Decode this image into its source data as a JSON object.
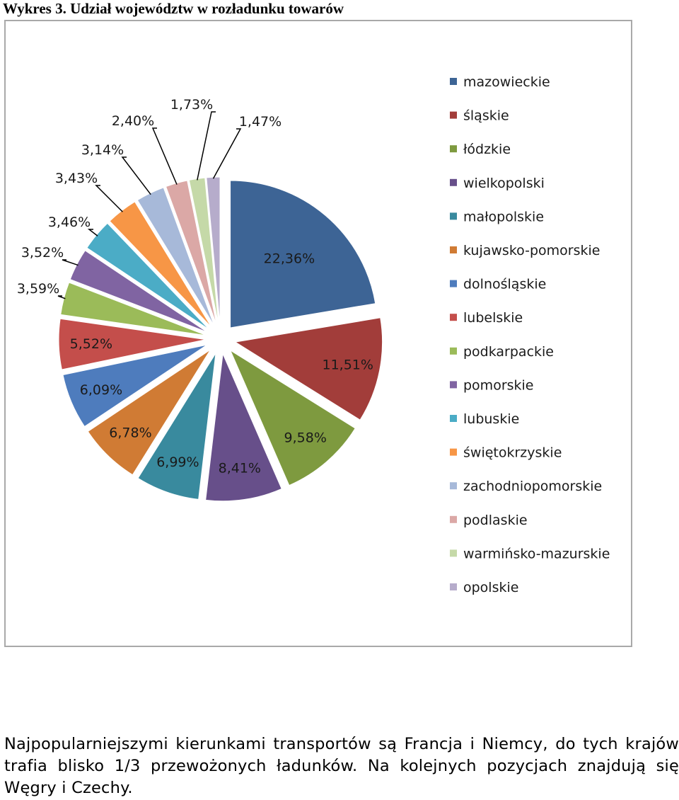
{
  "caption": "Wykres 3. Udział województw w rozładunku towarów",
  "paragraph": "Najpopularniejszymi kierunkami transportów są Francja i Niemcy, do tych krajów trafia blisko 1/3 przewożonych ładunków. Na kolejnych pozycjach znajdują się Węgry i Czechy.",
  "chart_data": {
    "type": "pie",
    "title": "",
    "legend_position": "right",
    "exploded": true,
    "categories": [
      "mazowieckie",
      "śląskie",
      "łódzkie",
      "wielkopolski",
      "małopolskie",
      "kujawsko-pomorskie",
      "dolnośląskie",
      "lubelskie",
      "podkarpackie",
      "pomorskie",
      "lubuskie",
      "świętokrzyskie",
      "zachodniopomorskie",
      "podlaskie",
      "warmińsko-mazurskie",
      "opolskie"
    ],
    "values": [
      22.36,
      11.51,
      9.58,
      8.41,
      6.99,
      6.78,
      6.09,
      5.52,
      3.59,
      3.52,
      3.46,
      3.43,
      3.14,
      2.4,
      1.73,
      1.47
    ],
    "labels": [
      "22,36%",
      "11,51%",
      "9,58%",
      "8,41%",
      "6,99%",
      "6,78%",
      "6,09%",
      "5,52%",
      "3,59%",
      "3,52%",
      "3,46%",
      "3,43%",
      "3,14%",
      "2,40%",
      "1,73%",
      "1,47%"
    ],
    "colors": [
      "#3d6495",
      "#a23d3a",
      "#7e9a3f",
      "#674f8a",
      "#398a9e",
      "#d07b34",
      "#4e7cbd",
      "#c44e4b",
      "#9bbb59",
      "#8064a2",
      "#4bacc6",
      "#f79646",
      "#a7b9d9",
      "#dba8a6",
      "#c5d9a8",
      "#b6accb"
    ]
  }
}
